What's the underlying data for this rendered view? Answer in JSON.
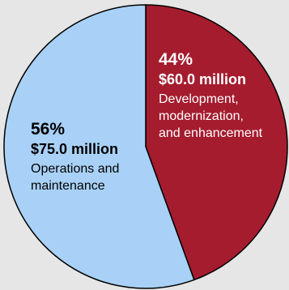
{
  "chart_data": {
    "type": "pie",
    "title": "",
    "slices": [
      {
        "percent_label": "44%",
        "value": 60.0,
        "amount_label": "$60.0 million",
        "description_lines": [
          "Development,",
          "modernization,",
          "and enhancement"
        ],
        "color": "#a51c2f",
        "text_color": "#ffffff"
      },
      {
        "percent_label": "56%",
        "value": 75.0,
        "amount_label": "$75.0 million",
        "description_lines": [
          "Operations and",
          "maintenance"
        ],
        "color": "#a9d1f7",
        "text_color": "#000000"
      }
    ],
    "start_angle_deg": 0,
    "direction": "clockwise",
    "outline_color": "#000000"
  }
}
